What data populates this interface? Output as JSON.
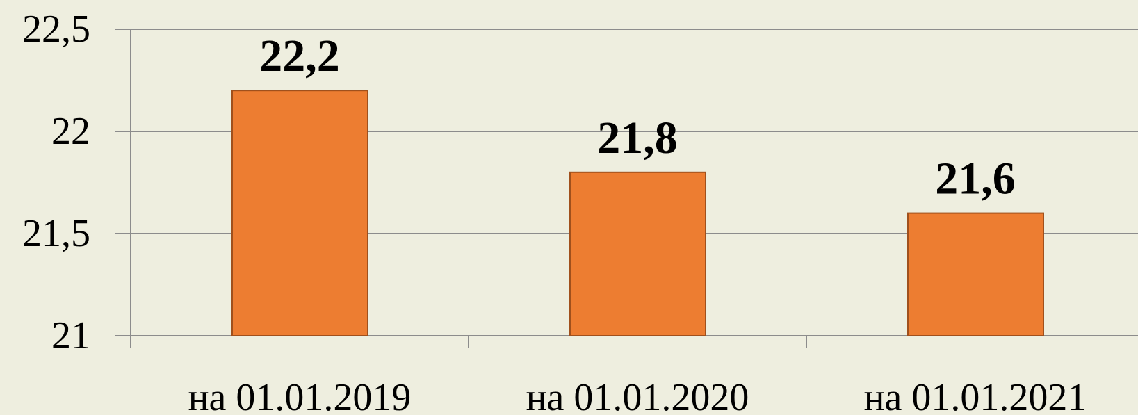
{
  "chart_data": {
    "type": "bar",
    "categories": [
      "на 01.01.2019",
      "на 01.01.2020",
      "на 01.01.2021"
    ],
    "values": [
      22.2,
      21.8,
      21.6
    ],
    "value_labels": [
      "22,2",
      "21,8",
      "21,6"
    ],
    "color": "#ed7d31",
    "ylim": [
      21,
      22.5
    ],
    "yticks": [
      21,
      {
        "value": 21.5,
        "label": "21,5"
      },
      22,
      {
        "value": 22.5,
        "label": "22,5"
      }
    ],
    "grid": true
  }
}
